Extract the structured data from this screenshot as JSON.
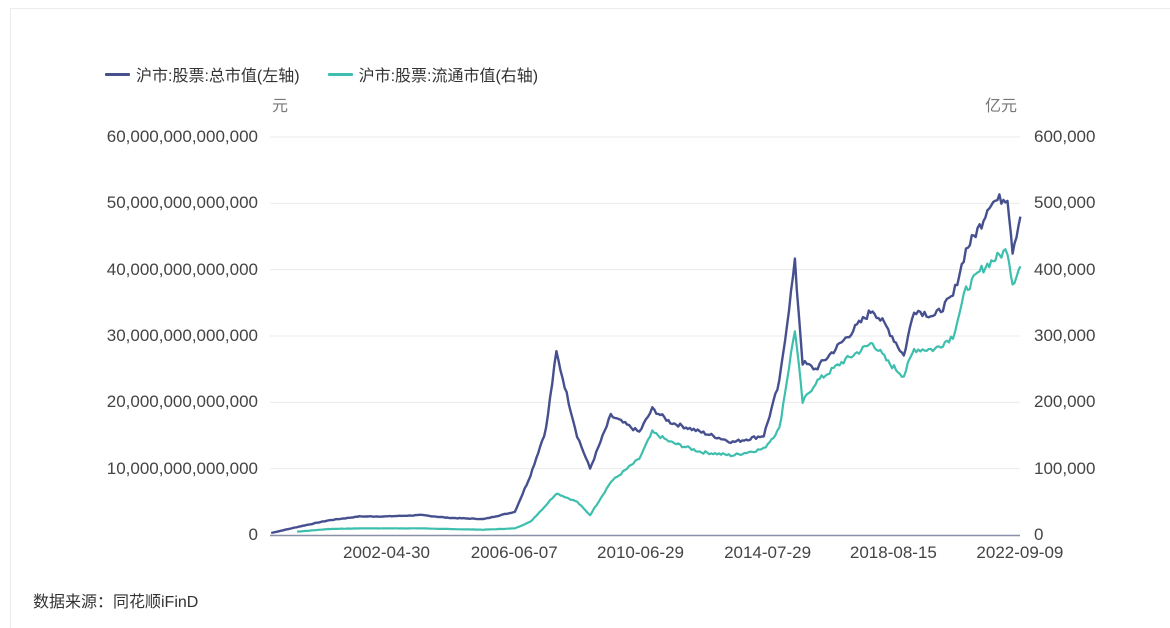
{
  "legend": [
    {
      "label": "沪市:股票:总市值(左轴)",
      "color": "#46508f"
    },
    {
      "label": "沪市:股票:流通市值(右轴)",
      "color": "#3ebfae"
    }
  ],
  "axes": {
    "left_unit": "元",
    "right_unit": "亿元",
    "left_ticks": [
      "60,000,000,000,000",
      "50,000,000,000,000",
      "40,000,000,000,000",
      "30,000,000,000,000",
      "20,000,000,000,000",
      "10,000,000,000,000",
      "0"
    ],
    "right_ticks": [
      "600,000",
      "500,000",
      "400,000",
      "300,000",
      "200,000",
      "100,000",
      "0"
    ],
    "x_ticks": [
      "2002-04-30",
      "2006-06-07",
      "2010-06-29",
      "2014-07-29",
      "2018-08-15",
      "2022-09-09"
    ]
  },
  "source": "数据来源：同花顺iFinD",
  "chart_data": {
    "type": "line",
    "title": "",
    "xlabel": "",
    "ylabel_left": "元",
    "ylabel_right": "亿元",
    "ylim_left": [
      0,
      60000000000000
    ],
    "ylim_right": [
      0,
      600000
    ],
    "grid": true,
    "legend_position": "top-left",
    "x_tick_labels": [
      "2002-04-30",
      "2006-06-07",
      "2010-06-29",
      "2014-07-29",
      "2018-08-15",
      "2022-09-09"
    ],
    "x": [
      "1998-08",
      "1999-06",
      "2000-06",
      "2001-06",
      "2002-04",
      "2003-06",
      "2004-04",
      "2005-06",
      "2006-06",
      "2006-12",
      "2007-06",
      "2007-10",
      "2008-06",
      "2008-11",
      "2009-07",
      "2010-06",
      "2010-11",
      "2011-06",
      "2012-06",
      "2013-06",
      "2014-06",
      "2014-12",
      "2015-06",
      "2015-09",
      "2016-02",
      "2016-12",
      "2017-12",
      "2018-06",
      "2018-12",
      "2019-04",
      "2019-12",
      "2020-07",
      "2020-12",
      "2021-06",
      "2021-09",
      "2022-04",
      "2022-06",
      "2022-09"
    ],
    "series": [
      {
        "name": "沪市:股票:总市值(左轴)",
        "axis": "left",
        "unit": "元",
        "values": [
          300000000000,
          1200000000000,
          2200000000000,
          2800000000000,
          2800000000000,
          3000000000000,
          2600000000000,
          2400000000000,
          3500000000000,
          9000000000000,
          16000000000000,
          27500000000000,
          15000000000000,
          10000000000000,
          18000000000000,
          15500000000000,
          19000000000000,
          17000000000000,
          15500000000000,
          14000000000000,
          15000000000000,
          23000000000000,
          41000000000000,
          26000000000000,
          25000000000000,
          29000000000000,
          34000000000000,
          31000000000000,
          27000000000000,
          34000000000000,
          33000000000000,
          36000000000000,
          43000000000000,
          47000000000000,
          50000000000000,
          51000000000000,
          43000000000000,
          48000000000000
        ]
      },
      {
        "name": "沪市:股票:流通市值(右轴)",
        "axis": "right",
        "unit": "亿元",
        "values": [
          null,
          5000,
          9000,
          10000,
          10000,
          10000,
          9000,
          8000,
          10000,
          20000,
          45000,
          63000,
          50000,
          30000,
          80000,
          115000,
          155000,
          140000,
          125000,
          120000,
          130000,
          160000,
          310000,
          200000,
          230000,
          260000,
          290000,
          260000,
          240000,
          280000,
          280000,
          300000,
          370000,
          400000,
          410000,
          430000,
          380000,
          405000
        ]
      }
    ]
  }
}
